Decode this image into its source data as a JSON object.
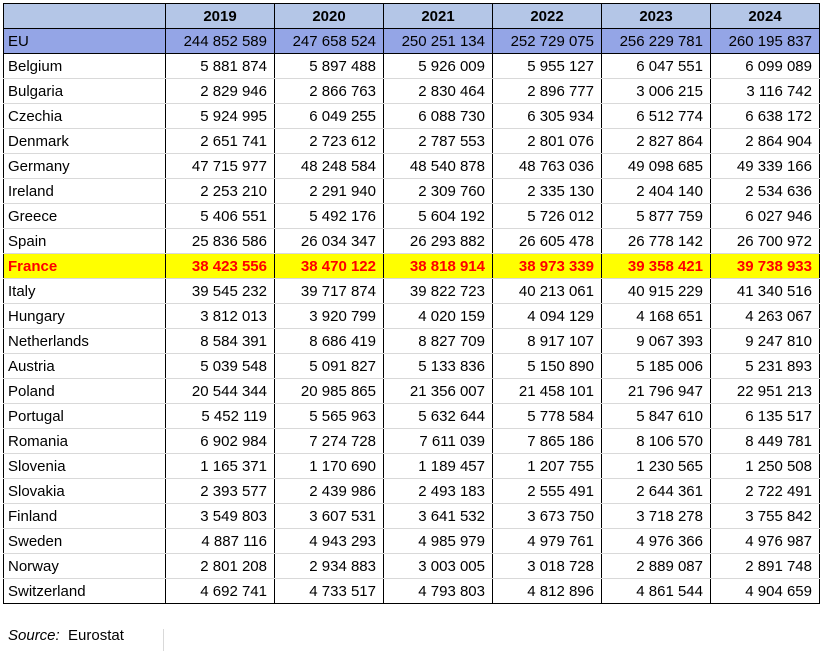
{
  "years": [
    "2019",
    "2020",
    "2021",
    "2022",
    "2023",
    "2024"
  ],
  "rows": [
    {
      "name": "EU",
      "values": [
        "244 852 589",
        "247 658 524",
        "250 251 134",
        "252 729 075",
        "256 229 781",
        "260 195 837"
      ]
    },
    {
      "name": "Belgium",
      "values": [
        "5 881 874",
        "5 897 488",
        "5 926 009",
        "5 955 127",
        "6 047 551",
        "6 099 089"
      ]
    },
    {
      "name": "Bulgaria",
      "values": [
        "2 829 946",
        "2 866 763",
        "2 830 464",
        "2 896 777",
        "3 006 215",
        "3 116 742"
      ]
    },
    {
      "name": "Czechia",
      "values": [
        "5 924 995",
        "6 049 255",
        "6 088 730",
        "6 305 934",
        "6 512 774",
        "6 638 172"
      ]
    },
    {
      "name": "Denmark",
      "values": [
        "2 651 741",
        "2 723 612",
        "2 787 553",
        "2 801 076",
        "2 827 864",
        "2 864 904"
      ]
    },
    {
      "name": "Germany",
      "values": [
        "47 715 977",
        "48 248 584",
        "48 540 878",
        "48 763 036",
        "49 098 685",
        "49 339 166"
      ]
    },
    {
      "name": "Ireland",
      "values": [
        "2 253 210",
        "2 291 940",
        "2 309 760",
        "2 335 130",
        "2 404 140",
        "2 534 636"
      ]
    },
    {
      "name": "Greece",
      "values": [
        "5 406 551",
        "5 492 176",
        "5 604 192",
        "5 726 012",
        "5 877 759",
        "6 027 946"
      ]
    },
    {
      "name": "Spain",
      "values": [
        "25 836 586",
        "26 034 347",
        "26 293 882",
        "26 605 478",
        "26 778 142",
        "26 700 972"
      ]
    },
    {
      "name": "France",
      "values": [
        "38 423 556",
        "38 470 122",
        "38 818 914",
        "38 973 339",
        "39 358 421",
        "39 738 933"
      ],
      "highlight": true
    },
    {
      "name": "Italy",
      "values": [
        "39 545 232",
        "39 717 874",
        "39 822 723",
        "40 213 061",
        "40 915 229",
        "41 340 516"
      ]
    },
    {
      "name": "Hungary",
      "values": [
        "3 812 013",
        "3 920 799",
        "4 020 159",
        "4 094 129",
        "4 168 651",
        "4 263 067"
      ]
    },
    {
      "name": "Netherlands",
      "values": [
        "8 584 391",
        "8 686 419",
        "8 827 709",
        "8 917 107",
        "9 067 393",
        "9 247 810"
      ]
    },
    {
      "name": "Austria",
      "values": [
        "5 039 548",
        "5 091 827",
        "5 133 836",
        "5 150 890",
        "5 185 006",
        "5 231 893"
      ]
    },
    {
      "name": "Poland",
      "values": [
        "20 544 344",
        "20 985 865",
        "21 356 007",
        "21 458 101",
        "21 796 947",
        "22 951 213"
      ]
    },
    {
      "name": "Portugal",
      "values": [
        "5 452 119",
        "5 565 963",
        "5 632 644",
        "5 778 584",
        "5 847 610",
        "6 135 517"
      ]
    },
    {
      "name": "Romania",
      "values": [
        "6 902 984",
        "7 274 728",
        "7 611 039",
        "7 865 186",
        "8 106 570",
        "8 449 781"
      ]
    },
    {
      "name": "Slovenia",
      "values": [
        "1 165 371",
        "1 170 690",
        "1 189 457",
        "1 207 755",
        "1 230 565",
        "1 250 508"
      ]
    },
    {
      "name": "Slovakia",
      "values": [
        "2 393 577",
        "2 439 986",
        "2 493 183",
        "2 555 491",
        "2 644 361",
        "2 722 491"
      ]
    },
    {
      "name": "Finland",
      "values": [
        "3 549 803",
        "3 607 531",
        "3 641 532",
        "3 673 750",
        "3 718 278",
        "3 755 842"
      ]
    },
    {
      "name": "Sweden",
      "values": [
        "4 887 116",
        "4 943 293",
        "4 985 979",
        "4 979 761",
        "4 976 366",
        "4 976 987"
      ]
    },
    {
      "name": "Norway",
      "values": [
        "2 801 208",
        "2 934 883",
        "3 003 005",
        "3 018 728",
        "2 889 087",
        "2 891 748"
      ]
    },
    {
      "name": "Switzerland",
      "values": [
        "4 692 741",
        "4 733 517",
        "4 793 803",
        "4 812 896",
        "4 861 544",
        "4 904 659"
      ]
    }
  ],
  "source": {
    "label": "Source:",
    "value": "Eurostat"
  },
  "colors": {
    "header_bg": "#b4c6e7",
    "eu_row_bg": "#94a5e6",
    "highlight_bg": "#ffff00",
    "highlight_text": "#ff0000"
  }
}
